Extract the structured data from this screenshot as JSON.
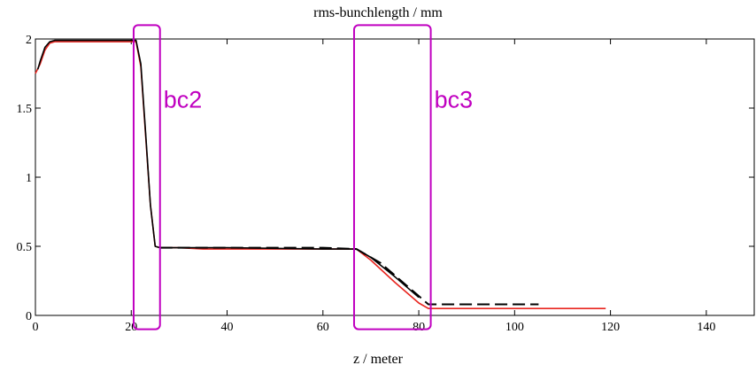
{
  "chart_data": {
    "type": "line",
    "title": "rms-bunchlength / mm",
    "xlabel": "z / meter",
    "ylabel": "",
    "xlim": [
      0,
      150
    ],
    "ylim": [
      0,
      2
    ],
    "xticks": [
      0,
      20,
      40,
      60,
      80,
      100,
      120,
      140
    ],
    "yticks": [
      0,
      0.5,
      1,
      1.5,
      2
    ],
    "ytick_labels": [
      "0",
      "0.5",
      "1",
      "1.5",
      "2"
    ],
    "grid": false,
    "series": [
      {
        "style": "solid",
        "color": "#e8251f",
        "x": [
          0,
          1,
          2,
          3,
          4,
          6,
          10,
          20,
          21,
          22,
          23,
          24,
          25,
          26,
          30,
          35,
          40,
          60,
          67,
          70,
          75,
          80,
          82,
          90,
          100,
          110,
          119
        ],
        "y": [
          1.75,
          1.82,
          1.92,
          1.97,
          1.98,
          1.98,
          1.98,
          1.98,
          1.98,
          1.8,
          1.3,
          0.8,
          0.5,
          0.49,
          0.49,
          0.48,
          0.48,
          0.48,
          0.48,
          0.4,
          0.24,
          0.09,
          0.05,
          0.05,
          0.05,
          0.05,
          0.05
        ]
      },
      {
        "style": "solid",
        "color": "#000000",
        "x": [
          0.5,
          1,
          2,
          3,
          4,
          6,
          10,
          20,
          21,
          22,
          23,
          24,
          25,
          26,
          30,
          35,
          40,
          60,
          67,
          70,
          75,
          80
        ],
        "y": [
          1.78,
          1.84,
          1.94,
          1.98,
          1.99,
          1.99,
          1.99,
          1.99,
          1.99,
          1.82,
          1.32,
          0.8,
          0.5,
          0.49,
          0.49,
          0.49,
          0.49,
          0.48,
          0.48,
          0.42,
          0.28,
          0.13
        ]
      },
      {
        "style": "dashed",
        "color": "#000000",
        "x": [
          26,
          40,
          60,
          67,
          72,
          78,
          82,
          90,
          100,
          105
        ],
        "y": [
          0.49,
          0.49,
          0.49,
          0.48,
          0.38,
          0.2,
          0.08,
          0.08,
          0.08,
          0.08
        ]
      }
    ],
    "annotations": [
      {
        "label": "bc2",
        "x_range": [
          20.5,
          26
        ],
        "y_range": [
          -0.1,
          2.1
        ],
        "color": "#c000c0"
      },
      {
        "label": "bc3",
        "x_range": [
          66.5,
          82.5
        ],
        "y_range": [
          -0.1,
          2.1
        ],
        "color": "#c000c0"
      }
    ]
  }
}
